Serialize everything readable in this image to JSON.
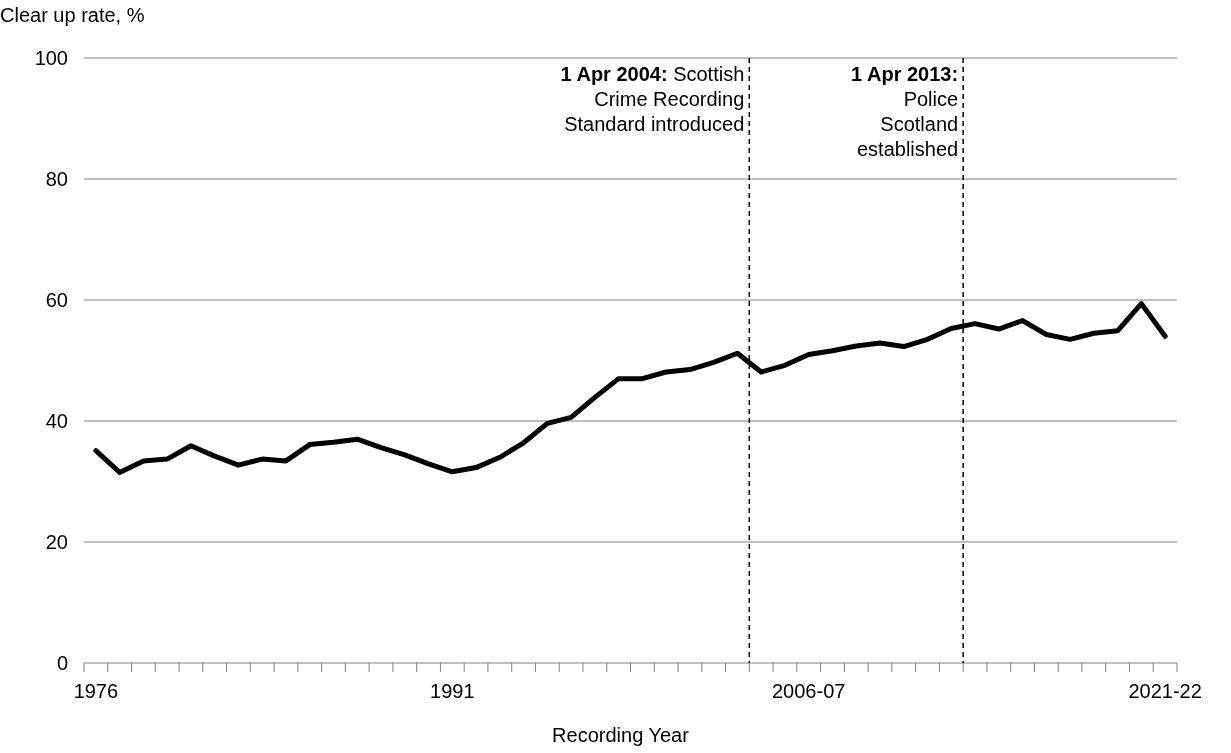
{
  "chart_data": {
    "type": "line",
    "xlabel": "Recording Year",
    "ylabel": "Clear up rate, %",
    "x": [
      1976,
      1977,
      1978,
      1979,
      1980,
      1981,
      1982,
      1983,
      1984,
      1985,
      1986,
      1987,
      1988,
      1989,
      1990,
      1991,
      1992,
      1993,
      1994,
      1995,
      1996,
      1997,
      1998,
      1999,
      2000,
      2001,
      2002,
      2003,
      2004,
      2005,
      2006,
      2007,
      2008,
      2009,
      2010,
      2011,
      2012,
      2013,
      2014,
      2015,
      2016,
      2017,
      2018,
      2019,
      2020,
      2021
    ],
    "series": [
      {
        "color": "#000000",
        "values": [
          35.1,
          31.5,
          33.4,
          33.7,
          35.9,
          34.2,
          32.7,
          33.7,
          33.4,
          36.1,
          36.5,
          37.0,
          35.6,
          34.4,
          32.9,
          31.6,
          32.3,
          34.0,
          36.4,
          39.6,
          40.6,
          43.9,
          47.0,
          47.0,
          48.1,
          48.5,
          49.7,
          51.2,
          48.1,
          49.2,
          51.0,
          51.6,
          52.4,
          52.9,
          52.3,
          53.5,
          55.3,
          56.1,
          55.2,
          56.6,
          54.3,
          53.5,
          54.5,
          54.9,
          59.4,
          54.0
        ]
      }
    ],
    "xlim": [
      1975.5,
      2021.5
    ],
    "xticks": [
      {
        "value": 1975.5,
        "label": null
      },
      {
        "value": 1976,
        "label": "1976"
      },
      {
        "value": 1976.5,
        "label": null
      },
      {
        "value": 1977.5,
        "label": null
      },
      {
        "value": 1978.5,
        "label": null
      },
      {
        "value": 1979.5,
        "label": null
      },
      {
        "value": 1980.5,
        "label": null
      },
      {
        "value": 1981.5,
        "label": null
      },
      {
        "value": 1982.5,
        "label": null
      },
      {
        "value": 1983.5,
        "label": null
      },
      {
        "value": 1984.5,
        "label": null
      },
      {
        "value": 1985.5,
        "label": null
      },
      {
        "value": 1986.5,
        "label": null
      },
      {
        "value": 1987.5,
        "label": null
      },
      {
        "value": 1988.5,
        "label": null
      },
      {
        "value": 1989.5,
        "label": null
      },
      {
        "value": 1990.5,
        "label": null
      },
      {
        "value": 1991,
        "label": "1991"
      },
      {
        "value": 1991.5,
        "label": null
      },
      {
        "value": 1992.5,
        "label": null
      },
      {
        "value": 1993.5,
        "label": null
      },
      {
        "value": 1994.5,
        "label": null
      },
      {
        "value": 1995.5,
        "label": null
      },
      {
        "value": 1996.5,
        "label": null
      },
      {
        "value": 1997.5,
        "label": null
      },
      {
        "value": 1998.5,
        "label": null
      },
      {
        "value": 1999.5,
        "label": null
      },
      {
        "value": 2000.5,
        "label": null
      },
      {
        "value": 2001.5,
        "label": null
      },
      {
        "value": 2002.5,
        "label": null
      },
      {
        "value": 2003.5,
        "label": null
      },
      {
        "value": 2004.5,
        "label": null
      },
      {
        "value": 2005.5,
        "label": null
      },
      {
        "value": 2006,
        "label": "2006-07"
      },
      {
        "value": 2006.5,
        "label": null
      },
      {
        "value": 2007.5,
        "label": null
      },
      {
        "value": 2008.5,
        "label": null
      },
      {
        "value": 2009.5,
        "label": null
      },
      {
        "value": 2010.5,
        "label": null
      },
      {
        "value": 2011.5,
        "label": null
      },
      {
        "value": 2012.5,
        "label": null
      },
      {
        "value": 2013.5,
        "label": null
      },
      {
        "value": 2014.5,
        "label": null
      },
      {
        "value": 2015.5,
        "label": null
      },
      {
        "value": 2016.5,
        "label": null
      },
      {
        "value": 2017.5,
        "label": null
      },
      {
        "value": 2018.5,
        "label": null
      },
      {
        "value": 2019.5,
        "label": null
      },
      {
        "value": 2020.5,
        "label": null
      },
      {
        "value": 2021,
        "label": "2021-22"
      },
      {
        "value": 2021.5,
        "label": null
      }
    ],
    "ylim": [
      0,
      100
    ],
    "yticks": [
      0,
      20,
      40,
      60,
      80,
      100
    ],
    "grid": "y",
    "line_style": "solid",
    "marker": "none",
    "ref_lines": [
      {
        "axis": "x",
        "value": 2003.5,
        "label": "1 Apr 2004: Scottish\nCrime Recording\nStandard introduced",
        "line_style": "dashed",
        "color": "#000000"
      },
      {
        "axis": "x",
        "value": 2012.5,
        "label": "1 Apr 2013:\nPolice\nScotland\nestablished",
        "line_style": "dashed",
        "color": "#000000"
      }
    ]
  }
}
